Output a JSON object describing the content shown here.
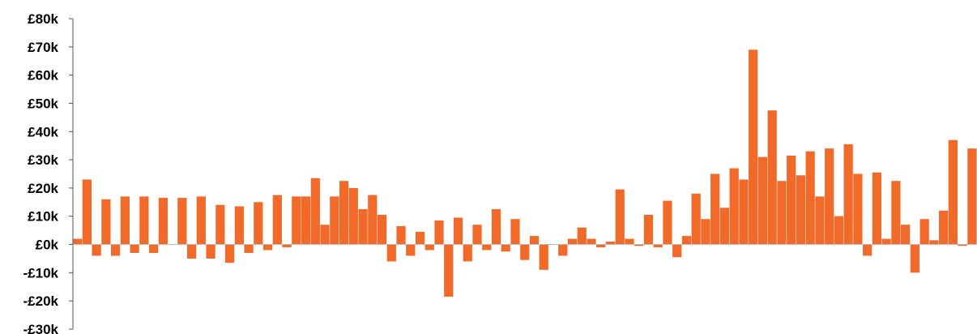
{
  "chart_data": {
    "type": "bar",
    "title": "",
    "xlabel": "",
    "ylabel": "",
    "ylim": [
      -30000,
      80000
    ],
    "y_ticks": [
      80000,
      70000,
      60000,
      50000,
      40000,
      30000,
      20000,
      10000,
      0,
      -10000,
      -20000,
      -30000
    ],
    "y_tick_labels": [
      "£80k",
      "£70k",
      "£60k",
      "£50k",
      "£40k",
      "£30k",
      "£20k",
      "£10k",
      "£0k",
      "-£10k",
      "-£20k",
      "-£30k"
    ],
    "grid": false,
    "legend": "none",
    "bar_color": "#F26A2A",
    "values": [
      2000,
      23000,
      -4000,
      16000,
      -4000,
      17000,
      -3000,
      17000,
      -3000,
      16500,
      0,
      16500,
      -5000,
      17000,
      -5000,
      14000,
      -6500,
      13500,
      -3000,
      15000,
      -2000,
      17500,
      -1000,
      17000,
      17000,
      23500,
      7000,
      17000,
      22500,
      20000,
      12500,
      17500,
      10500,
      -6000,
      6500,
      -4000,
      4500,
      -2000,
      8500,
      -18500,
      9500,
      -6000,
      7000,
      -2000,
      12500,
      -2500,
      9000,
      -5500,
      3000,
      -9000,
      0,
      -4000,
      2000,
      6000,
      2000,
      -1000,
      1000,
      19500,
      2000,
      -500,
      10500,
      -1000,
      15500,
      -4500,
      3000,
      18000,
      9000,
      25000,
      13000,
      27000,
      23000,
      69000,
      31000,
      47500,
      22500,
      31500,
      24500,
      33000,
      17000,
      34000,
      10000,
      35500,
      25000,
      -4000,
      25500,
      2000,
      22500,
      7000,
      -10000,
      9000,
      1500,
      12000,
      37000,
      -500,
      34000
    ]
  }
}
